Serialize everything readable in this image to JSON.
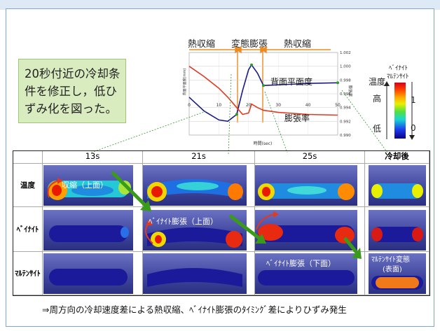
{
  "note_text": "20秒付近の冷却条件を修正し，低ひずみ化を図った。",
  "phases": {
    "shrink_left": "熱収縮",
    "transform": "変態膨張",
    "shrink_right": "熱収縮"
  },
  "chart_data": {
    "type": "line",
    "xlabel": "時間(sec)",
    "ylabel_left": "背面平面度(mm)",
    "ylabel_right": "膨張率",
    "x_ticks": [
      "0",
      "10",
      "20",
      "30",
      "40",
      "50"
    ],
    "y_right_ticks": [
      "1.002",
      "1.000",
      "0.998",
      "0.996",
      "0.994",
      "0.992",
      "0.990"
    ],
    "xlim": [
      0,
      50
    ],
    "ylim_right": [
      0.99,
      1.002
    ],
    "series": [
      {
        "name": "背面平面度",
        "color": "#1a1a8c",
        "x": [
          0,
          5,
          10,
          13,
          16,
          18,
          20,
          21,
          23,
          25,
          30,
          40,
          50
        ],
        "y": [
          0.9955,
          0.9935,
          0.9922,
          0.992,
          0.993,
          0.9965,
          0.9995,
          1.0002,
          0.999,
          0.9972,
          0.9973,
          0.9975,
          0.9976
        ]
      },
      {
        "name": "膨張率",
        "color": "#e23a1e",
        "x": [
          0,
          5,
          10,
          13,
          16,
          18,
          20,
          21,
          23,
          25,
          30,
          40,
          50
        ],
        "y": [
          1.0,
          0.9985,
          0.9968,
          0.9955,
          0.994,
          0.993,
          0.9932,
          0.9945,
          0.994,
          0.9936,
          0.9933,
          0.993,
          0.9929
        ]
      }
    ],
    "series_labels": {
      "flatness": "背面平面度",
      "expansion": "膨張率"
    }
  },
  "legend": {
    "title_line1": "ﾍﾞｲﾅｲﾄ",
    "title_line2": "ﾏﾙﾃﾝｻｲﾄ",
    "temp": "温度",
    "high": "高",
    "low": "低",
    "one": "1",
    "zero": "0"
  },
  "table": {
    "columns": [
      "13s",
      "21s",
      "25s",
      "冷却後"
    ],
    "rows": [
      "温度",
      "ﾍﾞｲﾅｲﾄ",
      "ﾏﾙﾃﾝｻｲﾄ"
    ],
    "annotations": {
      "shrink_top": "収縮（上面）",
      "bainite_top": "ﾍﾞｲﾅｲﾄ膨張（上面）",
      "bainite_bottom": "ﾍﾞｲﾅｲﾄ膨張（下面）",
      "martensite_line1": "ﾏﾙﾃﾝｻｲﾄ変態",
      "martensite_line2": "(表面)"
    }
  },
  "footer": "⇒周方向の冷却速度差による熱収縮、ﾍﾞｲﾅｲﾄ膨張のﾀｲﾐﾝｸﾞ差によりひずみ発生"
}
